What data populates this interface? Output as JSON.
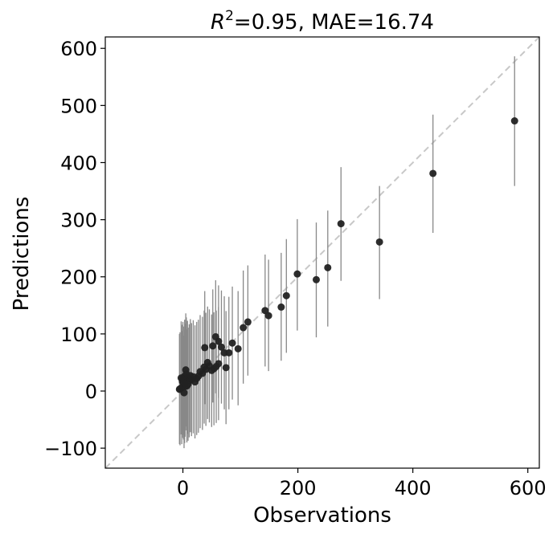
{
  "chart_data": {
    "type": "scatter",
    "title_prefix": "R",
    "title_sup": "2",
    "title_rest": "=0.95, MAE=16.74",
    "xlabel": "Observations",
    "ylabel": "Predictions",
    "xlim": [
      -135,
      620
    ],
    "ylim": [
      -135,
      620
    ],
    "xticks": [
      0,
      200,
      400,
      600
    ],
    "yticks": [
      -100,
      0,
      100,
      200,
      300,
      400,
      500,
      600
    ],
    "xtick_labels": [
      "0",
      "200",
      "400",
      "600"
    ],
    "ytick_labels": [
      "−100",
      "0",
      "100",
      "200",
      "300",
      "400",
      "500",
      "600"
    ],
    "grid": false,
    "identity_line": true,
    "colors": {
      "points": "#222222",
      "errorbars": "#888888",
      "identity": "#c8c8c8",
      "frame": "#000000"
    },
    "points": [
      {
        "x": 577,
        "y": 473,
        "lo": 359,
        "hi": 586
      },
      {
        "x": 435,
        "y": 381,
        "lo": 277,
        "hi": 484
      },
      {
        "x": 342,
        "y": 261,
        "lo": 161,
        "hi": 359
      },
      {
        "x": 275,
        "y": 293,
        "lo": 193,
        "hi": 392
      },
      {
        "x": 252,
        "y": 216,
        "lo": 113,
        "hi": 316
      },
      {
        "x": 232,
        "y": 195,
        "lo": 94,
        "hi": 295
      },
      {
        "x": 199,
        "y": 205,
        "lo": 106,
        "hi": 301
      },
      {
        "x": 180,
        "y": 167,
        "lo": 67,
        "hi": 266
      },
      {
        "x": 171,
        "y": 147,
        "lo": 53,
        "hi": 242
      },
      {
        "x": 149,
        "y": 132,
        "lo": 35,
        "hi": 230
      },
      {
        "x": 143,
        "y": 141,
        "lo": 43,
        "hi": 239
      },
      {
        "x": 113,
        "y": 121,
        "lo": 27,
        "hi": 220
      },
      {
        "x": 105,
        "y": 111,
        "lo": 13,
        "hi": 211
      },
      {
        "x": 96,
        "y": 74,
        "lo": -25,
        "hi": 175
      },
      {
        "x": 86,
        "y": 84,
        "lo": -15,
        "hi": 183
      },
      {
        "x": 80,
        "y": 67,
        "lo": -32,
        "hi": 165
      },
      {
        "x": 75,
        "y": 41,
        "lo": -58,
        "hi": 140
      },
      {
        "x": 72,
        "y": 67,
        "lo": -32,
        "hi": 166
      },
      {
        "x": 67,
        "y": 77,
        "lo": -22,
        "hi": 176
      },
      {
        "x": 62,
        "y": 87,
        "lo": -12,
        "hi": 185
      },
      {
        "x": 57,
        "y": 95,
        "lo": -4,
        "hi": 194
      },
      {
        "x": 52,
        "y": 79,
        "lo": -20,
        "hi": 178
      },
      {
        "x": 38,
        "y": 76,
        "lo": -23,
        "hi": 175
      },
      {
        "x": 62,
        "y": 48,
        "lo": -51,
        "hi": 147
      },
      {
        "x": 58,
        "y": 43,
        "lo": -56,
        "hi": 141
      },
      {
        "x": 54,
        "y": 39,
        "lo": -60,
        "hi": 138
      },
      {
        "x": 50,
        "y": 36,
        "lo": -63,
        "hi": 134
      },
      {
        "x": 46,
        "y": 44,
        "lo": -55,
        "hi": 143
      },
      {
        "x": 43,
        "y": 50,
        "lo": -49,
        "hi": 148
      },
      {
        "x": 40,
        "y": 38,
        "lo": -61,
        "hi": 137
      },
      {
        "x": 37,
        "y": 42,
        "lo": -57,
        "hi": 141
      },
      {
        "x": 34,
        "y": 31,
        "lo": -68,
        "hi": 130
      },
      {
        "x": 30,
        "y": 34,
        "lo": -65,
        "hi": 133
      },
      {
        "x": 27,
        "y": 26,
        "lo": -73,
        "hi": 125
      },
      {
        "x": 24,
        "y": 22,
        "lo": -77,
        "hi": 121
      },
      {
        "x": 21,
        "y": 16,
        "lo": -83,
        "hi": 115
      },
      {
        "x": 18,
        "y": 25,
        "lo": -74,
        "hi": 124
      },
      {
        "x": 15,
        "y": 20,
        "lo": -79,
        "hi": 119
      },
      {
        "x": 13,
        "y": 27,
        "lo": -72,
        "hi": 126
      },
      {
        "x": 11,
        "y": 18,
        "lo": -81,
        "hi": 117
      },
      {
        "x": 9,
        "y": 12,
        "lo": -87,
        "hi": 111
      },
      {
        "x": 8,
        "y": 24,
        "lo": -75,
        "hi": 123
      },
      {
        "x": 7,
        "y": 9,
        "lo": -90,
        "hi": 108
      },
      {
        "x": 6,
        "y": 30,
        "lo": -69,
        "hi": 129
      },
      {
        "x": 5,
        "y": 37,
        "lo": -62,
        "hi": 136
      },
      {
        "x": 4,
        "y": 19,
        "lo": -80,
        "hi": 118
      },
      {
        "x": 3,
        "y": 26,
        "lo": -73,
        "hi": 125
      },
      {
        "x": 3,
        "y": 8,
        "lo": -91,
        "hi": 107
      },
      {
        "x": 2,
        "y": -3,
        "lo": -100,
        "hi": 97
      },
      {
        "x": 1,
        "y": 14,
        "lo": -85,
        "hi": 113
      },
      {
        "x": 0,
        "y": 22,
        "lo": -77,
        "hi": 121
      },
      {
        "x": -1,
        "y": 17,
        "lo": -82,
        "hi": 116
      },
      {
        "x": -2,
        "y": 6,
        "lo": -93,
        "hi": 105
      },
      {
        "x": -3,
        "y": 23,
        "lo": -76,
        "hi": 122
      },
      {
        "x": -5,
        "y": 4,
        "lo": -95,
        "hi": 103
      },
      {
        "x": -6,
        "y": 3,
        "lo": -93,
        "hi": 100
      }
    ]
  }
}
